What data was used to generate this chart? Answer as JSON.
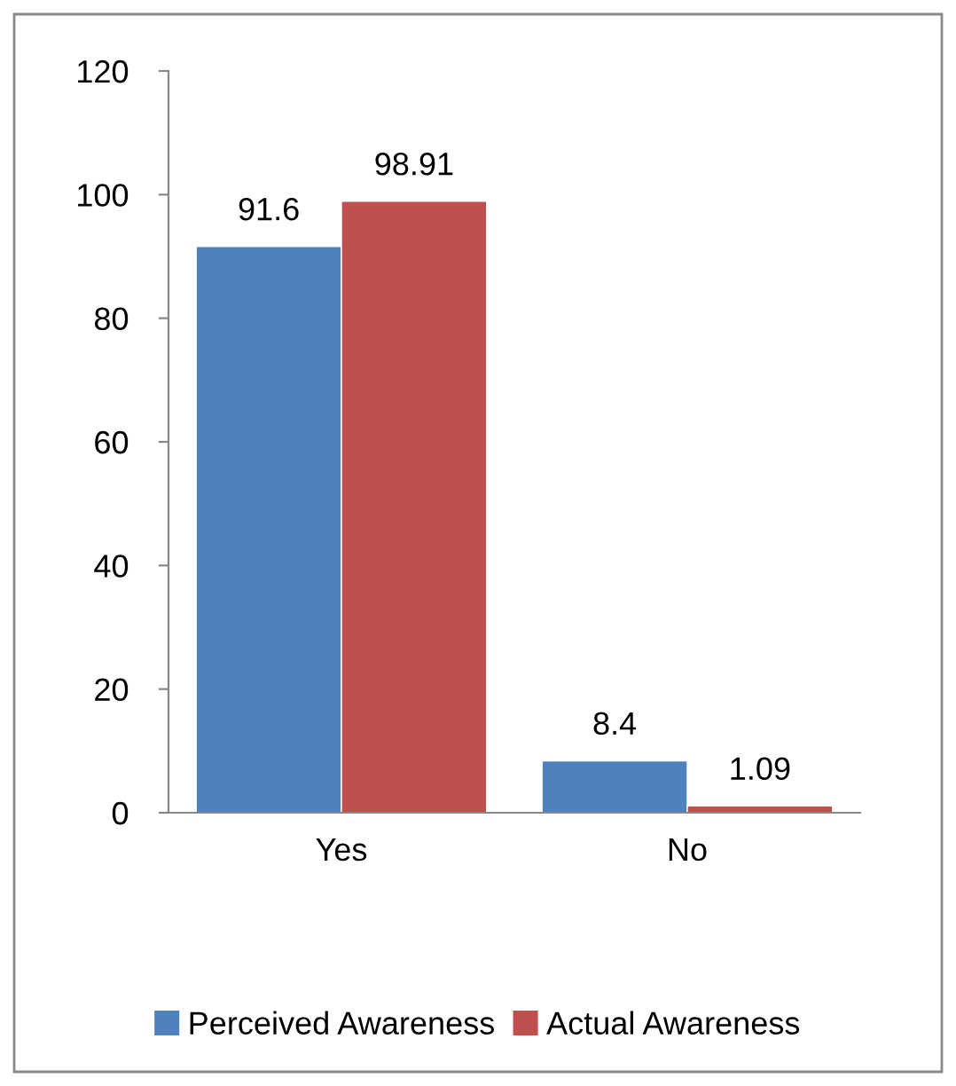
{
  "chart_data": {
    "type": "bar",
    "categories": [
      "Yes",
      "No"
    ],
    "series": [
      {
        "name": "Perceived Awareness",
        "color": "#4f81bd",
        "values": [
          91.6,
          8.4
        ]
      },
      {
        "name": "Actual Awareness",
        "color": "#c0504d",
        "values": [
          98.91,
          1.09
        ]
      }
    ],
    "ylim": [
      0,
      120
    ],
    "yticks": [
      0,
      20,
      40,
      60,
      80,
      100,
      120
    ],
    "data_labels": true,
    "grid": false,
    "legend": "bottom"
  }
}
